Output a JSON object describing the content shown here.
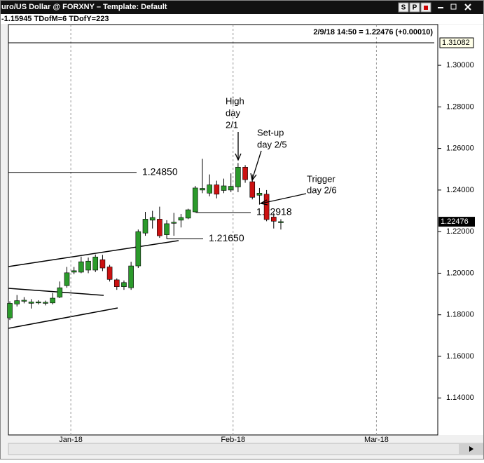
{
  "window": {
    "title": "uro/US Dollar @ FORXNY  –  Template: Default",
    "status": "-1.15945  TDofM=6  TDofY=223",
    "buttons": [
      "S",
      "P"
    ]
  },
  "chart_data": {
    "type": "candlestick",
    "readout": "2/9/18 14:50 = 1.22476 (+0.00010)",
    "xlim": [
      -0.2,
      60.0
    ],
    "xticks": [
      {
        "value": 8.55,
        "label": "Jan-18"
      },
      {
        "value": 31.3,
        "label": "Feb-18"
      },
      {
        "value": 51.4,
        "label": "Mar-18"
      }
    ],
    "ylim": [
      1.1222,
      1.3196
    ],
    "yticks": [
      {
        "value": 1.14,
        "label": "1.14000"
      },
      {
        "value": 1.16,
        "label": "1.16000"
      },
      {
        "value": 1.18,
        "label": "1.18000"
      },
      {
        "value": 1.2,
        "label": "1.20000"
      },
      {
        "value": 1.22,
        "label": "1.22000"
      },
      {
        "value": 1.24,
        "label": "1.24000"
      },
      {
        "value": 1.26,
        "label": "1.26000"
      },
      {
        "value": 1.28,
        "label": "1.28000"
      },
      {
        "value": 1.3,
        "label": "1.30000"
      }
    ],
    "up_color": "#2b9a2b",
    "down_color": "#cc1111",
    "series": [
      {
        "open": [
          1.1785,
          1.1852,
          1.1866,
          1.1855,
          1.1858,
          1.1855,
          1.1857,
          1.1885,
          1.194,
          1.2005,
          1.2005,
          1.2015,
          1.2015,
          1.2065,
          1.203,
          1.1968,
          1.1935,
          1.193,
          1.2035,
          1.2193,
          1.2255,
          1.226,
          1.2185,
          1.2243,
          1.2255,
          1.2265,
          1.2295,
          1.24,
          1.2385,
          1.2425,
          1.2398,
          1.24,
          1.2415,
          1.251,
          1.244,
          1.2375,
          1.238,
          1.227,
          1.2248
        ],
        "high": [
          1.1865,
          1.1895,
          1.1885,
          1.1875,
          1.187,
          1.1868,
          1.1905,
          1.196,
          1.203,
          1.203,
          1.208,
          1.2075,
          1.209,
          1.2088,
          1.204,
          1.1975,
          1.1965,
          1.2055,
          1.221,
          1.2295,
          1.23,
          1.232,
          1.2255,
          1.229,
          1.2285,
          1.231,
          1.242,
          1.255,
          1.2475,
          1.2445,
          1.2455,
          1.248,
          1.253,
          1.252,
          1.2475,
          1.241,
          1.24,
          1.229,
          1.226
        ],
        "low": [
          1.1775,
          1.184,
          1.1855,
          1.183,
          1.185,
          1.1845,
          1.185,
          1.188,
          1.193,
          1.1995,
          1.2,
          1.2,
          1.2005,
          1.201,
          1.196,
          1.192,
          1.192,
          1.192,
          1.2025,
          1.218,
          1.2215,
          1.217,
          1.2165,
          1.218,
          1.222,
          1.226,
          1.229,
          1.2385,
          1.237,
          1.236,
          1.2385,
          1.239,
          1.239,
          1.2435,
          1.2355,
          1.233,
          1.225,
          1.2215,
          1.221
        ],
        "close": [
          1.1855,
          1.1868,
          1.187,
          1.1862,
          1.1862,
          1.186,
          1.188,
          1.193,
          1.2002,
          1.2012,
          1.2055,
          1.2058,
          1.2078,
          1.2025,
          1.197,
          1.1935,
          1.1955,
          1.2035,
          1.22,
          1.226,
          1.2268,
          1.218,
          1.2238,
          1.2245,
          1.2268,
          1.2305,
          1.241,
          1.2408,
          1.2425,
          1.238,
          1.242,
          1.2418,
          1.251,
          1.245,
          1.2365,
          1.2385,
          1.2258,
          1.225,
          1.2248
        ]
      }
    ],
    "levels": [
      {
        "value": 1.2485,
        "label": "1.24850"
      },
      {
        "value": 1.2165,
        "label": "1.21650"
      },
      {
        "value": 1.22918,
        "label": "1.22918"
      }
    ],
    "high_line": {
      "value": 1.31082,
      "label": "1.31082"
    },
    "last_price": {
      "value": 1.22476,
      "label": "1.22476"
    },
    "annotations": [
      {
        "lines": [
          "High",
          "day",
          "2/1"
        ]
      },
      {
        "lines": [
          "Set-up",
          "day 2/5"
        ]
      },
      {
        "lines": [
          "Trigger",
          "day 2/6"
        ]
      }
    ]
  }
}
